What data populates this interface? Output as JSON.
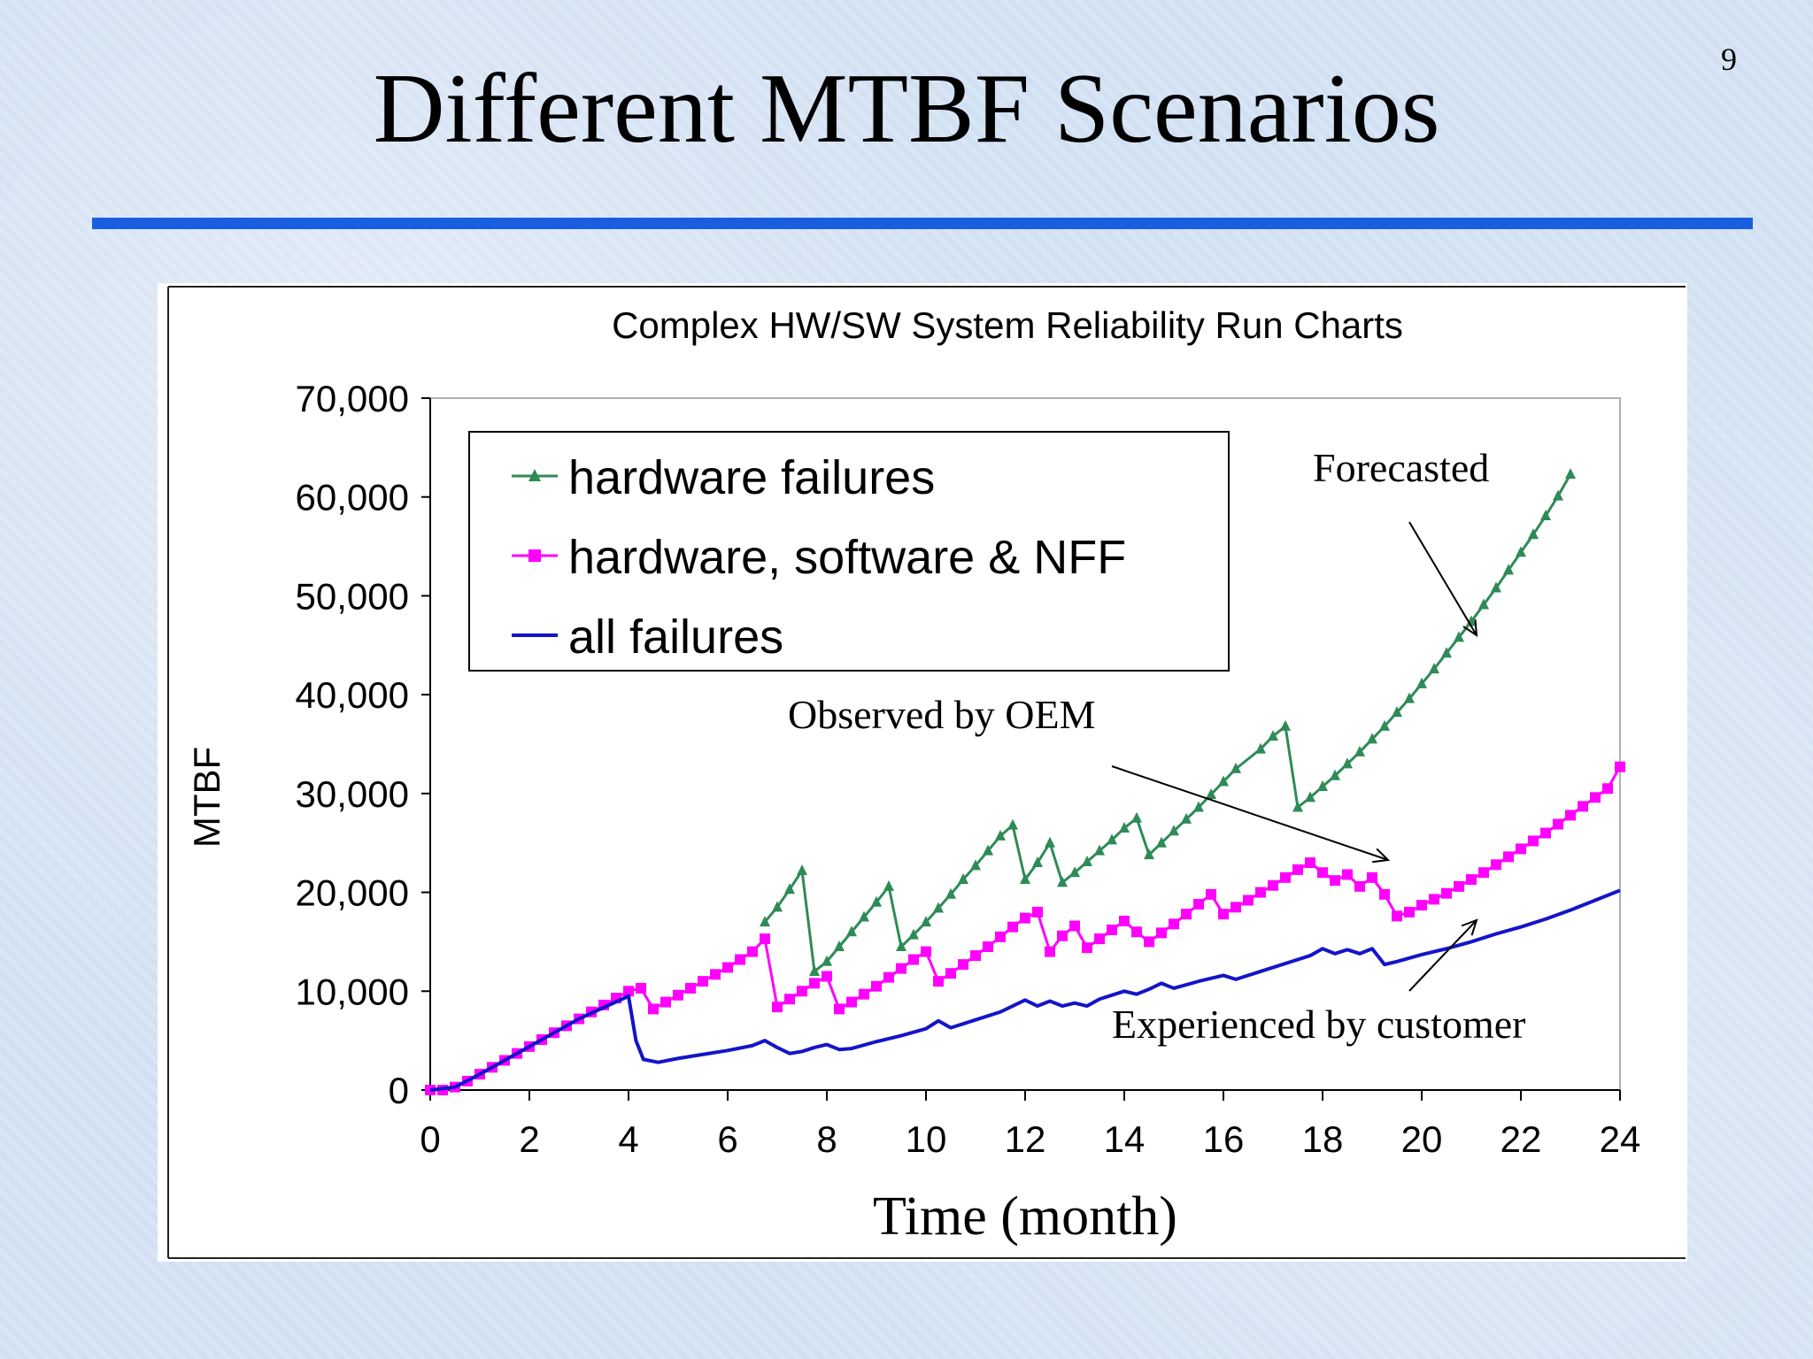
{
  "slide": {
    "title": "Different MTBF Scenarios",
    "page_number": "9",
    "accent_color": "#1a5ee0"
  },
  "chart_data": {
    "type": "line",
    "title": "Complex HW/SW System Reliability Run Charts",
    "xlabel": "Time (month)",
    "ylabel": "MTBF",
    "xlim": [
      0,
      24
    ],
    "ylim": [
      0,
      70000
    ],
    "x_ticks": [
      "0",
      "2",
      "4",
      "6",
      "8",
      "10",
      "12",
      "14",
      "16",
      "18",
      "20",
      "22",
      "24"
    ],
    "y_ticks": [
      "0",
      "10,000",
      "20,000",
      "30,000",
      "40,000",
      "50,000",
      "60,000",
      "70,000"
    ],
    "grid": false,
    "legend_position": "top-left",
    "series": [
      {
        "name": "hardware failures",
        "color": "#2e8b57",
        "marker": "triangle",
        "points": [
          [
            6.75,
            17000
          ],
          [
            7,
            18500
          ],
          [
            7.25,
            20300
          ],
          [
            7.5,
            22200
          ],
          [
            7.75,
            12000
          ],
          [
            8,
            13000
          ],
          [
            8.25,
            14500
          ],
          [
            8.5,
            16000
          ],
          [
            8.75,
            17500
          ],
          [
            9,
            19000
          ],
          [
            9.25,
            20600
          ],
          [
            9.5,
            14500
          ],
          [
            9.75,
            15700
          ],
          [
            10,
            17000
          ],
          [
            10.25,
            18400
          ],
          [
            10.5,
            19800
          ],
          [
            10.75,
            21300
          ],
          [
            11,
            22700
          ],
          [
            11.25,
            24200
          ],
          [
            11.5,
            25700
          ],
          [
            11.75,
            26800
          ],
          [
            12,
            21300
          ],
          [
            12.25,
            23000
          ],
          [
            12.5,
            25000
          ],
          [
            12.75,
            21000
          ],
          [
            13,
            22000
          ],
          [
            13.25,
            23100
          ],
          [
            13.5,
            24200
          ],
          [
            13.75,
            25300
          ],
          [
            14,
            26500
          ],
          [
            14.25,
            27500
          ],
          [
            14.5,
            23800
          ],
          [
            14.75,
            25000
          ],
          [
            15,
            26200
          ],
          [
            15.25,
            27400
          ],
          [
            15.5,
            28600
          ],
          [
            15.75,
            29900
          ],
          [
            16,
            31200
          ],
          [
            16.25,
            32500
          ],
          [
            16.75,
            34500
          ],
          [
            17,
            35800
          ],
          [
            17.25,
            36800
          ],
          [
            17.5,
            28600
          ],
          [
            17.75,
            29600
          ],
          [
            18,
            30700
          ],
          [
            18.25,
            31800
          ],
          [
            18.5,
            33000
          ],
          [
            18.75,
            34200
          ],
          [
            19,
            35500
          ],
          [
            19.25,
            36800
          ],
          [
            19.5,
            38200
          ],
          [
            19.75,
            39600
          ],
          [
            20,
            41100
          ],
          [
            20.25,
            42600
          ],
          [
            20.5,
            44200
          ],
          [
            20.75,
            45800
          ],
          [
            21,
            47400
          ],
          [
            21.25,
            49100
          ],
          [
            21.5,
            50800
          ],
          [
            21.75,
            52600
          ],
          [
            22,
            54400
          ],
          [
            22.25,
            56200
          ],
          [
            22.5,
            58100
          ],
          [
            22.75,
            60100
          ],
          [
            23,
            62300
          ]
        ]
      },
      {
        "name": "hardware, software & NFF",
        "color": "#ff00ff",
        "marker": "square",
        "points": [
          [
            0,
            0
          ],
          [
            0.25,
            0
          ],
          [
            0.5,
            300
          ],
          [
            0.75,
            900
          ],
          [
            1,
            1600
          ],
          [
            1.25,
            2300
          ],
          [
            1.5,
            3000
          ],
          [
            1.75,
            3700
          ],
          [
            2,
            4400
          ],
          [
            2.25,
            5100
          ],
          [
            2.5,
            5800
          ],
          [
            2.75,
            6500
          ],
          [
            3,
            7200
          ],
          [
            3.25,
            7900
          ],
          [
            3.5,
            8600
          ],
          [
            3.75,
            9300
          ],
          [
            4,
            10000
          ],
          [
            4.25,
            10300
          ],
          [
            4.5,
            8200
          ],
          [
            4.75,
            8900
          ],
          [
            5,
            9600
          ],
          [
            5.25,
            10300
          ],
          [
            5.5,
            11000
          ],
          [
            5.75,
            11700
          ],
          [
            6,
            12400
          ],
          [
            6.25,
            13200
          ],
          [
            6.5,
            14000
          ],
          [
            6.75,
            15300
          ],
          [
            7,
            8400
          ],
          [
            7.25,
            9200
          ],
          [
            7.5,
            10000
          ],
          [
            7.75,
            10800
          ],
          [
            8,
            11500
          ],
          [
            8.25,
            8200
          ],
          [
            8.5,
            8900
          ],
          [
            8.75,
            9700
          ],
          [
            9,
            10500
          ],
          [
            9.25,
            11400
          ],
          [
            9.5,
            12300
          ],
          [
            9.75,
            13200
          ],
          [
            10,
            14000
          ],
          [
            10.25,
            11000
          ],
          [
            10.5,
            11800
          ],
          [
            10.75,
            12700
          ],
          [
            11,
            13600
          ],
          [
            11.25,
            14500
          ],
          [
            11.5,
            15500
          ],
          [
            11.75,
            16500
          ],
          [
            12,
            17400
          ],
          [
            12.25,
            18000
          ],
          [
            12.5,
            14000
          ],
          [
            12.75,
            15600
          ],
          [
            13,
            16600
          ],
          [
            13.25,
            14400
          ],
          [
            13.5,
            15300
          ],
          [
            13.75,
            16200
          ],
          [
            14,
            17100
          ],
          [
            14.25,
            16000
          ],
          [
            14.5,
            15000
          ],
          [
            14.75,
            15900
          ],
          [
            15,
            16800
          ],
          [
            15.25,
            17800
          ],
          [
            15.5,
            18800
          ],
          [
            15.75,
            19800
          ],
          [
            16,
            17800
          ],
          [
            16.25,
            18500
          ],
          [
            16.5,
            19200
          ],
          [
            16.75,
            20000
          ],
          [
            17,
            20700
          ],
          [
            17.25,
            21500
          ],
          [
            17.5,
            22300
          ],
          [
            17.75,
            23000
          ],
          [
            18,
            22000
          ],
          [
            18.25,
            21200
          ],
          [
            18.5,
            21800
          ],
          [
            18.75,
            20600
          ],
          [
            19,
            21500
          ],
          [
            19.25,
            19800
          ],
          [
            19.5,
            17600
          ],
          [
            19.75,
            18000
          ],
          [
            20,
            18700
          ],
          [
            20.25,
            19300
          ],
          [
            20.5,
            19900
          ],
          [
            20.75,
            20600
          ],
          [
            21,
            21300
          ],
          [
            21.25,
            22000
          ],
          [
            21.5,
            22800
          ],
          [
            21.75,
            23600
          ],
          [
            22,
            24400
          ],
          [
            22.25,
            25200
          ],
          [
            22.5,
            26000
          ],
          [
            22.75,
            26900
          ],
          [
            23,
            27800
          ],
          [
            23.25,
            28700
          ],
          [
            23.5,
            29600
          ],
          [
            23.75,
            30500
          ],
          [
            24,
            32700
          ]
        ]
      },
      {
        "name": "all failures",
        "color": "#1414c8",
        "marker": "none",
        "points": [
          [
            0,
            0
          ],
          [
            0.5,
            300
          ],
          [
            1,
            1600
          ],
          [
            2,
            4400
          ],
          [
            3,
            7200
          ],
          [
            4,
            9500
          ],
          [
            4.15,
            5000
          ],
          [
            4.3,
            3100
          ],
          [
            4.6,
            2800
          ],
          [
            5,
            3200
          ],
          [
            5.5,
            3600
          ],
          [
            6,
            4000
          ],
          [
            6.5,
            4500
          ],
          [
            6.75,
            5000
          ],
          [
            7,
            4300
          ],
          [
            7.25,
            3700
          ],
          [
            7.5,
            3900
          ],
          [
            7.75,
            4300
          ],
          [
            8,
            4600
          ],
          [
            8.25,
            4100
          ],
          [
            8.5,
            4200
          ],
          [
            9,
            4900
          ],
          [
            9.5,
            5500
          ],
          [
            10,
            6200
          ],
          [
            10.25,
            7000
          ],
          [
            10.5,
            6300
          ],
          [
            11,
            7100
          ],
          [
            11.5,
            7900
          ],
          [
            12,
            9100
          ],
          [
            12.25,
            8500
          ],
          [
            12.5,
            9000
          ],
          [
            12.75,
            8500
          ],
          [
            13,
            8800
          ],
          [
            13.25,
            8500
          ],
          [
            13.5,
            9200
          ],
          [
            14,
            10000
          ],
          [
            14.25,
            9700
          ],
          [
            14.5,
            10200
          ],
          [
            14.75,
            10800
          ],
          [
            15,
            10300
          ],
          [
            15.5,
            11000
          ],
          [
            16,
            11600
          ],
          [
            16.25,
            11200
          ],
          [
            16.75,
            12000
          ],
          [
            17.25,
            12800
          ],
          [
            17.75,
            13600
          ],
          [
            18,
            14300
          ],
          [
            18.25,
            13800
          ],
          [
            18.5,
            14200
          ],
          [
            18.75,
            13800
          ],
          [
            19,
            14300
          ],
          [
            19.25,
            12700
          ],
          [
            19.5,
            13000
          ],
          [
            20,
            13700
          ],
          [
            20.5,
            14300
          ],
          [
            21,
            15000
          ],
          [
            21.5,
            15800
          ],
          [
            22,
            16500
          ],
          [
            22.5,
            17300
          ],
          [
            23,
            18200
          ],
          [
            23.5,
            19200
          ],
          [
            24,
            20200
          ]
        ]
      }
    ],
    "annotations": [
      {
        "text": "Forecasted"
      },
      {
        "text": "Observed by OEM"
      },
      {
        "text": "Experienced by customer"
      }
    ]
  }
}
